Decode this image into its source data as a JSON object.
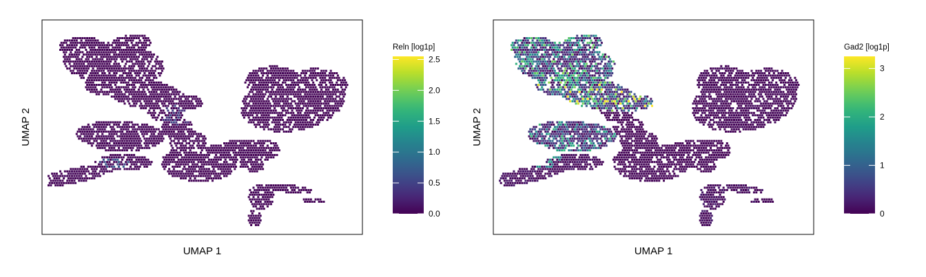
{
  "chart_data": [
    {
      "type": "scatter",
      "plot_kind": "UMAP feature plot (hexbin)",
      "xlabel": "UMAP 1",
      "ylabel": "UMAP 2",
      "legend_title": "Reln [log1p]",
      "color_scale": "viridis",
      "color_range": [
        0,
        2.55
      ],
      "legend_ticks": [
        "0.0",
        "0.5",
        "1.0",
        "1.5",
        "2.0",
        "2.5"
      ],
      "legend_tick_values": [
        0,
        0.5,
        1.0,
        1.5,
        2.0,
        2.5
      ],
      "hotspots": [
        {
          "x": 22,
          "y": 34,
          "value": 0.9
        },
        {
          "x": 55,
          "y": 20,
          "value": 0.8
        },
        {
          "x": 42,
          "y": 56,
          "value": 0.6
        },
        {
          "x": 44,
          "y": 18,
          "value": 0.5
        }
      ],
      "region_expression": [
        0.02,
        0.02,
        0.05,
        0.05,
        0.03,
        0.02,
        0.03,
        0.02,
        0.05
      ]
    },
    {
      "type": "scatter",
      "plot_kind": "UMAP feature plot (hexbin)",
      "xlabel": "UMAP 1",
      "ylabel": "UMAP 2",
      "legend_title": "Gad2 [log1p]",
      "color_scale": "viridis",
      "color_range": [
        0,
        3.25
      ],
      "legend_ticks": [
        "0",
        "1",
        "2",
        "3"
      ],
      "legend_tick_values": [
        0,
        1,
        2,
        3
      ],
      "hotspots": [
        {
          "x": 22,
          "y": 72,
          "value": 2.8
        },
        {
          "x": 28,
          "y": 60,
          "value": 2.4
        },
        {
          "x": 16,
          "y": 36,
          "value": 1.9
        },
        {
          "x": 10,
          "y": 82,
          "value": 1.6
        }
      ],
      "region_expression": [
        1.6,
        2.2,
        1.4,
        0.15,
        0.05,
        0.03,
        0.08,
        0.03,
        0.2
      ]
    }
  ]
}
